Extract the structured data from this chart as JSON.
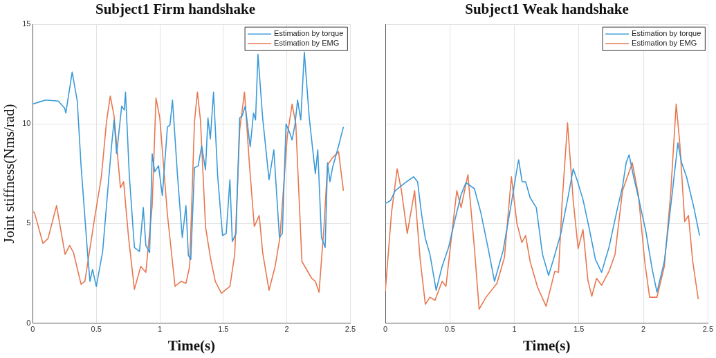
{
  "chart_data": [
    {
      "type": "line",
      "title": "Subject1 Firm handshake",
      "xlabel": "Time(s)",
      "ylabel": "Joint stiffness(Nms/rad)",
      "xlim": [
        0,
        2.5
      ],
      "xticks": [
        0,
        0.5,
        1,
        1.5,
        2,
        2.5
      ],
      "ylim": [
        0,
        15
      ],
      "yticks": [
        0,
        5,
        10,
        15
      ],
      "grid": true,
      "legend": "top right",
      "marker": "none",
      "line_style": "solid",
      "series": [
        {
          "name": "Estimation by torque",
          "color": "#3a9ad9",
          "x": [
            0,
            0.05,
            0.1,
            0.2,
            0.25,
            0.26,
            0.31,
            0.35,
            0.38,
            0.43,
            0.45,
            0.47,
            0.5,
            0.55,
            0.6,
            0.62,
            0.64,
            0.66,
            0.7,
            0.72,
            0.73,
            0.76,
            0.8,
            0.84,
            0.87,
            0.89,
            0.92,
            0.94,
            0.96,
            0.99,
            1.02,
            1.06,
            1.08,
            1.1,
            1.14,
            1.177,
            1.206,
            1.225,
            1.244,
            1.273,
            1.302,
            1.33,
            1.36,
            1.379,
            1.398,
            1.423,
            1.456,
            1.494,
            1.523,
            1.552,
            1.571,
            1.6,
            1.629,
            1.648,
            1.673,
            1.712,
            1.738,
            1.754,
            1.773,
            1.81,
            1.86,
            1.898,
            1.942,
            1.965,
            1.994,
            2.023,
            2.042,
            2.065,
            2.085,
            2.11,
            2.138,
            2.177,
            2.225,
            2.244,
            2.273,
            2.302,
            2.321,
            2.34,
            2.36,
            2.408,
            2.446
          ],
          "values": [
            11.0,
            11.1,
            11.2,
            11.15,
            10.8,
            10.55,
            12.6,
            11.15,
            7.9,
            3.6,
            2.1,
            2.7,
            1.85,
            3.6,
            7.4,
            8.9,
            10.2,
            8.5,
            10.9,
            10.7,
            11.6,
            7.4,
            3.8,
            3.6,
            5.8,
            3.9,
            3.55,
            8.5,
            7.6,
            7.9,
            6.4,
            9.85,
            9.95,
            11.2,
            7.35,
            4.3,
            5.9,
            3.4,
            3.2,
            7.8,
            7.9,
            8.9,
            7.7,
            10.3,
            9.25,
            11.6,
            7.35,
            4.4,
            4.5,
            7.2,
            4.1,
            4.5,
            10.3,
            10.4,
            10.9,
            8.85,
            10.55,
            10.2,
            13.5,
            10.3,
            7.2,
            8.7,
            4.3,
            4.5,
            10.0,
            9.55,
            9.2,
            10.0,
            11.2,
            10.2,
            13.6,
            10.3,
            7.5,
            8.7,
            4.3,
            3.8,
            8.05,
            7.1,
            7.8,
            8.9,
            9.85
          ]
        },
        {
          "name": "Estimation by EMG",
          "color": "#e8774f",
          "x": [
            0,
            0.013,
            0.08,
            0.12,
            0.187,
            0.254,
            0.29,
            0.32,
            0.38,
            0.41,
            0.485,
            0.54,
            0.58,
            0.61,
            0.64,
            0.69,
            0.715,
            0.754,
            0.8,
            0.85,
            0.89,
            0.94,
            0.97,
            1.0,
            1.06,
            1.12,
            1.167,
            1.206,
            1.235,
            1.273,
            1.296,
            1.32,
            1.36,
            1.398,
            1.437,
            1.485,
            1.552,
            1.59,
            1.629,
            1.667,
            1.706,
            1.744,
            1.783,
            1.81,
            1.86,
            1.908,
            1.946,
            2.004,
            2.042,
            2.071,
            2.119,
            2.196,
            2.225,
            2.254,
            2.292,
            2.321,
            2.36,
            2.408,
            2.446
          ],
          "values": [
            5.6,
            5.55,
            4.0,
            4.25,
            5.9,
            3.45,
            3.9,
            3.55,
            1.95,
            2.1,
            5.2,
            7.35,
            10.1,
            11.4,
            10.4,
            6.8,
            7.1,
            4.3,
            1.7,
            2.85,
            2.55,
            5.9,
            11.3,
            10.3,
            5.45,
            1.85,
            2.1,
            2.0,
            2.85,
            10.1,
            11.6,
            10.2,
            4.85,
            3.3,
            2.1,
            1.5,
            1.85,
            3.45,
            9.7,
            11.6,
            7.95,
            4.85,
            5.4,
            3.55,
            1.65,
            2.85,
            4.3,
            9.4,
            11.0,
            10.0,
            3.1,
            2.25,
            2.1,
            1.55,
            4.75,
            7.95,
            8.3,
            8.6,
            6.65
          ]
        }
      ]
    },
    {
      "type": "line",
      "title": "Subject1 Weak handshake",
      "xlabel": "Time(s)",
      "xlim": [
        0,
        2.5
      ],
      "xticks": [
        0,
        0.5,
        1,
        1.5,
        2,
        2.5
      ],
      "ylim": [
        0,
        15
      ],
      "yticks": [
        0,
        5,
        10,
        15
      ],
      "tick_labels": "x",
      "grid": true,
      "legend": "top right",
      "marker": "none",
      "line_style": "solid",
      "series": [
        {
          "name": "Estimation by torque",
          "color": "#3a9ad9",
          "x": [
            0,
            0.04,
            0.077,
            0.154,
            0.22,
            0.25,
            0.279,
            0.31,
            0.346,
            0.394,
            0.44,
            0.49,
            0.54,
            0.587,
            0.625,
            0.69,
            0.74,
            0.8,
            0.846,
            0.913,
            0.98,
            1.01,
            1.033,
            1.06,
            1.087,
            1.122,
            1.17,
            1.218,
            1.265,
            1.303,
            1.36,
            1.418,
            1.456,
            1.485,
            1.532,
            1.58,
            1.628,
            1.676,
            1.733,
            1.8,
            1.838,
            1.866,
            1.889,
            1.924,
            1.962,
            2.019,
            2.067,
            2.105,
            2.162,
            2.229,
            2.267,
            2.296,
            2.334,
            2.391,
            2.435
          ],
          "values": [
            6.0,
            6.15,
            6.65,
            7.05,
            7.35,
            7.1,
            5.55,
            4.25,
            3.45,
            1.65,
            2.85,
            3.8,
            5.2,
            6.45,
            7.05,
            6.75,
            5.55,
            3.65,
            2.1,
            3.65,
            6.15,
            7.35,
            8.2,
            7.1,
            7.1,
            6.3,
            5.8,
            3.45,
            2.4,
            3.2,
            4.5,
            6.4,
            7.75,
            7.2,
            6.2,
            4.75,
            3.2,
            2.55,
            3.8,
            5.8,
            6.85,
            8.05,
            8.45,
            7.35,
            6.3,
            4.6,
            2.75,
            1.55,
            3.1,
            6.85,
            9.05,
            8.05,
            7.35,
            5.8,
            4.4
          ]
        },
        {
          "name": "Estimation by EMG",
          "color": "#e8774f",
          "x": [
            0,
            0.048,
            0.092,
            0.125,
            0.17,
            0.227,
            0.27,
            0.31,
            0.346,
            0.385,
            0.44,
            0.47,
            0.52,
            0.554,
            0.587,
            0.64,
            0.69,
            0.727,
            0.78,
            0.865,
            0.923,
            0.977,
            1.02,
            1.058,
            1.087,
            1.122,
            1.18,
            1.246,
            1.313,
            1.342,
            1.37,
            1.412,
            1.456,
            1.494,
            1.532,
            1.57,
            1.6,
            1.637,
            1.676,
            1.733,
            1.78,
            1.838,
            1.914,
            1.962,
            2.01,
            2.048,
            2.105,
            2.162,
            2.21,
            2.254,
            2.282,
            2.32,
            2.349,
            2.382,
            2.425
          ],
          "values": [
            1.6,
            5.55,
            7.75,
            6.65,
            4.5,
            6.65,
            3.2,
            0.95,
            1.3,
            1.15,
            2.1,
            1.85,
            4.75,
            6.65,
            5.8,
            7.45,
            3.8,
            0.7,
            1.3,
            2.0,
            3.3,
            7.35,
            5.0,
            4.05,
            4.4,
            3.1,
            1.8,
            0.85,
            2.6,
            2.55,
            6.05,
            10.05,
            6.15,
            3.75,
            4.7,
            2.15,
            1.35,
            2.25,
            1.9,
            2.6,
            3.45,
            6.65,
            8.05,
            6.4,
            3.1,
            1.3,
            1.3,
            2.85,
            6.4,
            11.0,
            9.0,
            5.1,
            5.4,
            3.1,
            1.2
          ]
        }
      ]
    }
  ]
}
